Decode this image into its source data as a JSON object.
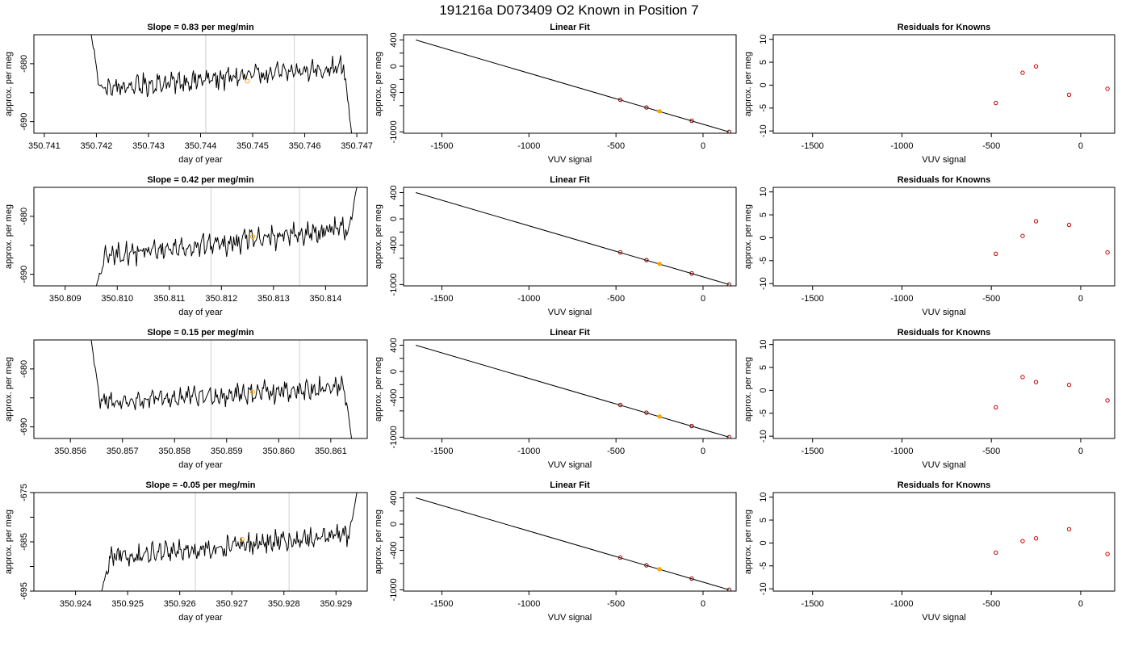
{
  "figure": {
    "suptitle": "191216a      D073409   O2 Known in Position  7"
  },
  "colors": {
    "line": "#000000",
    "highlight": "#ffa500",
    "residual_points": "#cc0000",
    "fit_points": "#8b0000",
    "vertical_markers": "#cfcfcf"
  },
  "chart_data": [
    {
      "type": "line",
      "row": 0,
      "col": 0,
      "title": "Slope =  0.83  per meg/min",
      "xlabel": "day of year",
      "ylabel": "approx. per meg",
      "xlim": [
        350.7408,
        350.7472
      ],
      "ylim": [
        -692,
        -675
      ],
      "xticks": [
        "350.741",
        "350.742",
        "350.743",
        "350.744",
        "350.745",
        "350.746",
        "350.747"
      ],
      "yticks": [
        -690,
        -680
      ],
      "yticks_minor": [
        -685,
        -695
      ],
      "vlines": [
        350.7441,
        350.7458
      ],
      "highlight_point": [
        350.7449,
        -683
      ],
      "trace": {
        "x_start": 350.7419,
        "x_end": 350.7469,
        "base_start": -684.5,
        "base_end": -680.5,
        "entry_level": -675,
        "exit_level": -692,
        "noise": 1.6
      }
    },
    {
      "type": "line",
      "row": 1,
      "col": 0,
      "title": "Slope =  0.42  per meg/min",
      "xlabel": "day of year",
      "ylabel": "approx. per meg",
      "xlim": [
        350.8084,
        350.8148
      ],
      "ylim": [
        -692,
        -675
      ],
      "xticks": [
        "350.809",
        "350.810",
        "350.811",
        "350.812",
        "350.813",
        "350.814"
      ],
      "yticks": [
        -690,
        -680
      ],
      "yticks_minor": [
        -685,
        -695
      ],
      "vlines": [
        350.8118,
        350.8135
      ],
      "highlight_point": [
        350.8126,
        -683.5
      ],
      "trace": {
        "x_start": 350.8096,
        "x_end": 350.8146,
        "base_start": -687,
        "base_end": -682,
        "entry_level": -692,
        "exit_level": -675,
        "noise": 1.7
      }
    },
    {
      "type": "line",
      "row": 2,
      "col": 0,
      "title": "Slope =  0.15  per meg/min",
      "xlabel": "day of year",
      "ylabel": "approx. per meg",
      "xlim": [
        350.8553,
        350.8617
      ],
      "ylim": [
        -692,
        -675
      ],
      "xticks": [
        "350.856",
        "350.857",
        "350.858",
        "350.859",
        "350.860",
        "350.861"
      ],
      "yticks": [
        -690,
        -680
      ],
      "yticks_minor": [
        -685,
        -695
      ],
      "vlines": [
        350.8587,
        350.8604
      ],
      "highlight_point": [
        350.8595,
        -684
      ],
      "trace": {
        "x_start": 350.8564,
        "x_end": 350.8614,
        "base_start": -686,
        "base_end": -683,
        "entry_level": -675,
        "exit_level": -692,
        "noise": 1.6
      }
    },
    {
      "type": "line",
      "row": 3,
      "col": 0,
      "title": "Slope =  -0.05  per meg/min",
      "xlabel": "day of year",
      "ylabel": "approx. per meg",
      "xlim": [
        350.9232,
        350.9296
      ],
      "ylim": [
        -695,
        -675
      ],
      "xticks": [
        "350.924",
        "350.925",
        "350.926",
        "350.927",
        "350.928",
        "350.929"
      ],
      "yticks": [
        -695,
        -685,
        -675
      ],
      "yticks_minor": [
        -690,
        -680
      ],
      "vlines": [
        350.9263,
        350.9281
      ],
      "highlight_point": [
        350.9272,
        -684.5
      ],
      "trace": {
        "x_start": 350.9245,
        "x_end": 350.9294,
        "base_start": -688.5,
        "base_end": -683.5,
        "entry_level": -695,
        "exit_level": -675,
        "noise": 1.9
      }
    },
    {
      "type": "scatter",
      "row": 0,
      "col": 1,
      "title": "Linear Fit",
      "xlabel": "VUV signal",
      "ylabel": "approx. per meg",
      "xlim": [
        -1720,
        190
      ],
      "ylim": [
        -1020,
        480
      ],
      "xticks": [
        -1500,
        -1000,
        -500,
        0
      ],
      "yticks": [
        -1000,
        -600,
        -200,
        200
      ],
      "yticks_labeled": [
        400,
        0,
        -400,
        -1000
      ],
      "line": {
        "x": [
          -1650,
          150
        ],
        "y": [
          400,
          -1000
        ]
      },
      "points": {
        "x": [
          -475,
          -325,
          -250,
          -65,
          150
        ],
        "y": [
          -510,
          -627,
          -686,
          -830,
          -1000
        ]
      },
      "highlight_index": 2
    },
    {
      "type": "scatter",
      "row": 1,
      "col": 1,
      "title": "Linear Fit",
      "xlabel": "VUV signal",
      "ylabel": "approx. per meg",
      "xlim": [
        -1720,
        190
      ],
      "ylim": [
        -1020,
        480
      ],
      "xticks": [
        -1500,
        -1000,
        -500,
        0
      ],
      "yticks": [
        -1000,
        -600,
        -200,
        200
      ],
      "yticks_labeled": [
        400,
        0,
        -400,
        -1000
      ],
      "line": {
        "x": [
          -1650,
          150
        ],
        "y": [
          400,
          -1000
        ]
      },
      "points": {
        "x": [
          -475,
          -325,
          -250,
          -65,
          150
        ],
        "y": [
          -510,
          -627,
          -686,
          -830,
          -1000
        ]
      },
      "highlight_index": 2
    },
    {
      "type": "scatter",
      "row": 2,
      "col": 1,
      "title": "Linear Fit",
      "xlabel": "VUV signal",
      "ylabel": "approx. per meg",
      "xlim": [
        -1720,
        190
      ],
      "ylim": [
        -1020,
        480
      ],
      "xticks": [
        -1500,
        -1000,
        -500,
        0
      ],
      "yticks": [
        -1000,
        -600,
        -200,
        200
      ],
      "yticks_labeled": [
        400,
        0,
        -400,
        -1000
      ],
      "line": {
        "x": [
          -1650,
          150
        ],
        "y": [
          400,
          -1000
        ]
      },
      "points": {
        "x": [
          -475,
          -325,
          -250,
          -65,
          150
        ],
        "y": [
          -510,
          -627,
          -686,
          -830,
          -1000
        ]
      },
      "highlight_index": 2
    },
    {
      "type": "scatter",
      "row": 3,
      "col": 1,
      "title": "Linear Fit",
      "xlabel": "VUV signal",
      "ylabel": "approx. per meg",
      "xlim": [
        -1720,
        190
      ],
      "ylim": [
        -1020,
        480
      ],
      "xticks": [
        -1500,
        -1000,
        -500,
        0
      ],
      "yticks": [
        -1000,
        -600,
        -200,
        200
      ],
      "yticks_labeled": [
        400,
        0,
        -400,
        -1000
      ],
      "line": {
        "x": [
          -1650,
          150
        ],
        "y": [
          400,
          -1000
        ]
      },
      "points": {
        "x": [
          -475,
          -325,
          -250,
          -65,
          150
        ],
        "y": [
          -510,
          -627,
          -686,
          -830,
          -1000
        ]
      },
      "highlight_index": 2
    },
    {
      "type": "scatter",
      "row": 0,
      "col": 2,
      "title": "Residuals for Knowns",
      "xlabel": "VUV signal",
      "ylabel": "approx. per meg",
      "xlim": [
        -1720,
        190
      ],
      "ylim": [
        -10.5,
        11
      ],
      "xticks": [
        -1500,
        -1000,
        -500,
        0
      ],
      "yticks": [
        -10,
        -5,
        0,
        5,
        10
      ],
      "points": {
        "x": [
          -475,
          -325,
          -250,
          -65,
          150
        ],
        "y": [
          -3.9,
          2.7,
          4.1,
          -2.1,
          -0.8
        ]
      }
    },
    {
      "type": "scatter",
      "row": 1,
      "col": 2,
      "title": "Residuals for Knowns",
      "xlabel": "VUV signal",
      "ylabel": "approx. per meg",
      "xlim": [
        -1720,
        190
      ],
      "ylim": [
        -10.5,
        11
      ],
      "xticks": [
        -1500,
        -1000,
        -500,
        0
      ],
      "yticks": [
        -10,
        -5,
        0,
        5,
        10
      ],
      "points": {
        "x": [
          -475,
          -325,
          -250,
          -65,
          150
        ],
        "y": [
          -3.5,
          0.4,
          3.6,
          2.8,
          -3.2
        ]
      }
    },
    {
      "type": "scatter",
      "row": 2,
      "col": 2,
      "title": "Residuals for Knowns",
      "xlabel": "VUV signal",
      "ylabel": "approx. per meg",
      "xlim": [
        -1720,
        190
      ],
      "ylim": [
        -10.5,
        11
      ],
      "xticks": [
        -1500,
        -1000,
        -500,
        0
      ],
      "yticks": [
        -10,
        -5,
        0,
        5,
        10
      ],
      "points": {
        "x": [
          -475,
          -325,
          -250,
          -65,
          150
        ],
        "y": [
          -3.7,
          2.9,
          1.8,
          1.2,
          -2.2
        ]
      }
    },
    {
      "type": "scatter",
      "row": 3,
      "col": 2,
      "title": "Residuals for Knowns",
      "xlabel": "VUV signal",
      "ylabel": "approx. per meg",
      "xlim": [
        -1720,
        190
      ],
      "ylim": [
        -10.5,
        11
      ],
      "xticks": [
        -1500,
        -1000,
        -500,
        0
      ],
      "yticks": [
        -10,
        -5,
        0,
        5,
        10
      ],
      "points": {
        "x": [
          -475,
          -325,
          -250,
          -65,
          150
        ],
        "y": [
          -2.1,
          0.4,
          1.0,
          3.0,
          -2.4
        ]
      }
    }
  ]
}
